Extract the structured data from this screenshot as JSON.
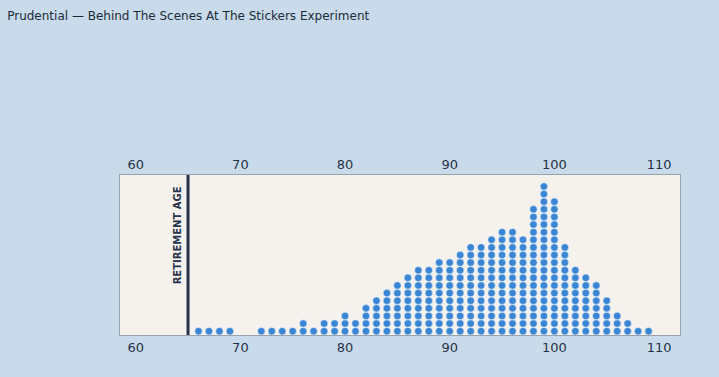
{
  "chart_data": {
    "type": "dot",
    "title": "Prudential — Behind The Scenes At The Stickers Experiment",
    "x": [
      66,
      67,
      68,
      69,
      70,
      71,
      72,
      73,
      74,
      75,
      76,
      77,
      78,
      79,
      80,
      81,
      82,
      83,
      84,
      85,
      86,
      87,
      88,
      89,
      90,
      91,
      92,
      93,
      94,
      95,
      96,
      97,
      98,
      99,
      100,
      101,
      102,
      103,
      104,
      105,
      106,
      107,
      108,
      109
    ],
    "values": [
      1,
      1,
      1,
      1,
      0,
      0,
      1,
      1,
      1,
      1,
      2,
      1,
      2,
      2,
      3,
      2,
      4,
      5,
      6,
      7,
      8,
      9,
      9,
      10,
      10,
      11,
      12,
      12,
      13,
      14,
      14,
      13,
      17,
      20,
      18,
      12,
      9,
      8,
      7,
      5,
      3,
      2,
      1,
      1
    ],
    "color": "#3a86d4",
    "xlim": [
      58.5,
      112
    ],
    "xticks": [
      60,
      70,
      80,
      90,
      100,
      110
    ],
    "ylim": [
      0,
      21
    ],
    "tick_labels": "x",
    "grid": false,
    "annotations": [
      {
        "text": "RETIREMENT AGE",
        "x": 65
      }
    ]
  }
}
